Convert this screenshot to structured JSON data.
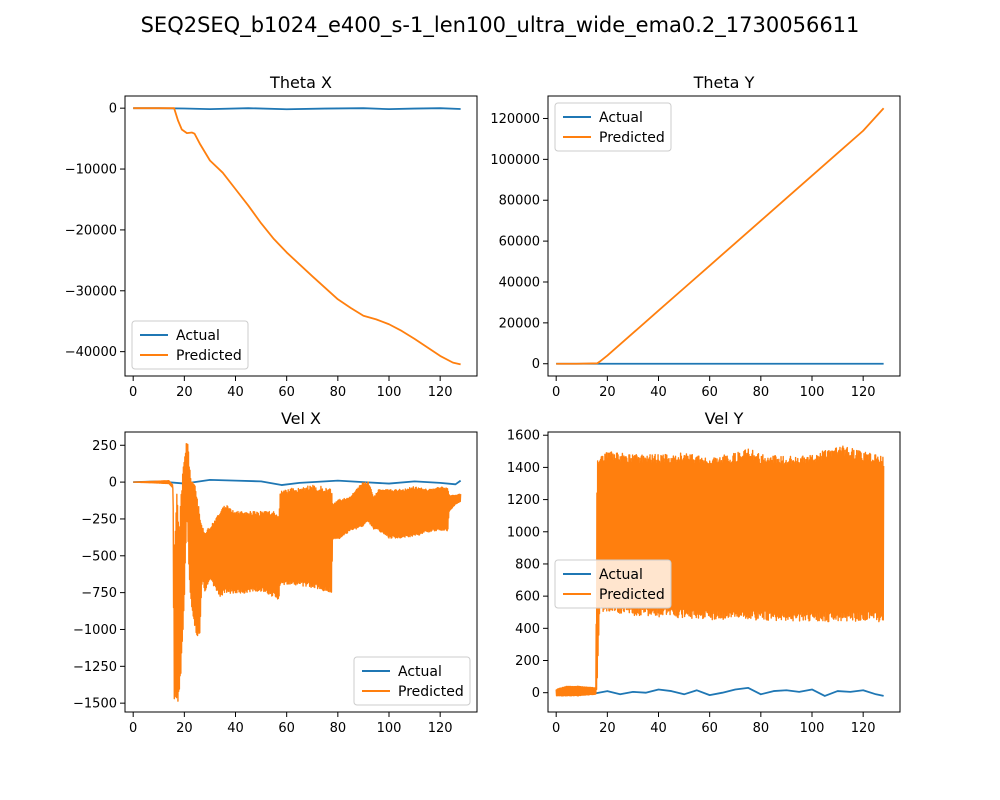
{
  "figure": {
    "suptitle": "SEQ2SEQ_b1024_e400_s-1_len100_ultra_wide_ema0.2_1730056611"
  },
  "colors": {
    "actual": "#1f77b4",
    "predicted": "#ff7f0e",
    "axes": "#000000",
    "background": "#ffffff"
  },
  "chart_data": [
    {
      "id": "theta-x",
      "type": "line",
      "title": "Theta X",
      "xlabel": "",
      "ylabel": "",
      "xlim": [
        -3.2,
        134.4
      ],
      "ylim": [
        -44000,
        2000
      ],
      "xticks": [
        0,
        20,
        40,
        60,
        80,
        100,
        120
      ],
      "yticks": [
        0,
        -10000,
        -20000,
        -30000,
        -40000
      ],
      "ytick_labels": [
        "0",
        "−10000",
        "−20000",
        "−30000",
        "−40000"
      ],
      "grid": false,
      "legend": {
        "position": "lower-left",
        "entries": [
          "Actual",
          "Predicted"
        ]
      },
      "series": [
        {
          "name": "Actual",
          "style": "smooth",
          "x": [
            0,
            10,
            20,
            30,
            45,
            60,
            75,
            90,
            100,
            110,
            120,
            128
          ],
          "y": [
            0,
            0,
            -50,
            -150,
            0,
            -180,
            -60,
            0,
            -160,
            -60,
            0,
            -140
          ]
        },
        {
          "name": "Predicted",
          "style": "smooth",
          "x": [
            0,
            8,
            16,
            17.5,
            19,
            21,
            23,
            24,
            26,
            30,
            35,
            40,
            45,
            50,
            55,
            60,
            70,
            80,
            85,
            90,
            95,
            100,
            105,
            110,
            115,
            120,
            125,
            128
          ],
          "y": [
            0,
            0,
            0,
            -2000,
            -3500,
            -4100,
            -4000,
            -4200,
            -5800,
            -8600,
            -10600,
            -13300,
            -16000,
            -18900,
            -21500,
            -23700,
            -27600,
            -31400,
            -32800,
            -34100,
            -34700,
            -35500,
            -36600,
            -37900,
            -39300,
            -40700,
            -41800,
            -42100
          ]
        }
      ]
    },
    {
      "id": "theta-y",
      "type": "line",
      "title": "Theta Y",
      "xlabel": "",
      "ylabel": "",
      "xlim": [
        -3.2,
        134.4
      ],
      "ylim": [
        -6000,
        131000
      ],
      "xticks": [
        0,
        20,
        40,
        60,
        80,
        100,
        120
      ],
      "yticks": [
        0,
        20000,
        40000,
        60000,
        80000,
        100000,
        120000
      ],
      "ytick_labels": [
        "0",
        "20000",
        "40000",
        "60000",
        "80000",
        "100000",
        "120000"
      ],
      "grid": false,
      "legend": {
        "position": "top-left",
        "entries": [
          "Actual",
          "Predicted"
        ]
      },
      "series": [
        {
          "name": "Actual",
          "style": "smooth",
          "x": [
            0,
            20,
            40,
            60,
            80,
            100,
            128
          ],
          "y": [
            0,
            0,
            0,
            0,
            0,
            0,
            0
          ]
        },
        {
          "name": "Predicted",
          "style": "smooth",
          "x": [
            0,
            8,
            16,
            17,
            20,
            30,
            40,
            50,
            60,
            70,
            80,
            90,
            100,
            110,
            120,
            128
          ],
          "y": [
            0,
            0,
            200,
            1000,
            4000,
            15000,
            26000,
            37000,
            48000,
            59000,
            70000,
            81000,
            92000,
            103000,
            114000,
            125000
          ]
        }
      ]
    },
    {
      "id": "vel-x",
      "type": "line",
      "title": "Vel X",
      "xlabel": "",
      "ylabel": "",
      "xlim": [
        -3.2,
        134.4
      ],
      "ylim": [
        -1560,
        340
      ],
      "xticks": [
        0,
        20,
        40,
        60,
        80,
        100,
        120
      ],
      "yticks": [
        250,
        0,
        -250,
        -500,
        -750,
        -1000,
        -1250,
        -1500
      ],
      "ytick_labels": [
        "250",
        "0",
        "−250",
        "−500",
        "−750",
        "−1000",
        "−1250",
        "−1500"
      ],
      "grid": false,
      "legend": {
        "position": "lower-right",
        "entries": [
          "Actual",
          "Predicted"
        ]
      },
      "series": [
        {
          "name": "Actual",
          "style": "smooth",
          "x": [
            0,
            10,
            20,
            30,
            40,
            50,
            58,
            65,
            80,
            90,
            100,
            110,
            120,
            126,
            128
          ],
          "y": [
            0,
            5,
            -10,
            15,
            10,
            5,
            -20,
            -5,
            10,
            0,
            -10,
            5,
            -5,
            -15,
            10
          ]
        },
        {
          "name": "Predicted",
          "style": "band",
          "x": [
            0,
            8,
            14,
            15.5,
            16,
            17,
            18,
            19,
            20,
            21,
            21.5,
            22,
            23,
            24,
            25,
            26,
            27,
            28,
            29,
            30,
            32,
            34,
            36,
            40,
            45,
            50,
            55,
            57,
            57.5,
            60,
            65,
            70,
            75,
            77.5,
            78,
            80,
            85,
            87,
            90,
            92,
            94,
            96,
            100,
            105,
            110,
            115,
            120,
            123,
            123.5,
            126,
            128
          ],
          "y_upper": [
            0,
            5,
            10,
            -20,
            -500,
            -50,
            -300,
            0,
            200,
            280,
            250,
            100,
            0,
            0,
            -100,
            -200,
            -300,
            -350,
            -320,
            -300,
            -250,
            -200,
            -150,
            -200,
            -200,
            -200,
            -200,
            -220,
            -50,
            -50,
            -30,
            -20,
            -30,
            -40,
            -150,
            -120,
            -100,
            -50,
            0,
            0,
            -100,
            -50,
            -50,
            -50,
            -30,
            -50,
            -30,
            -40,
            -90,
            -90,
            -80
          ],
          "y_lower": [
            0,
            -5,
            -10,
            -40,
            -1480,
            -1500,
            -1480,
            -1200,
            -800,
            -200,
            -450,
            -700,
            -900,
            -980,
            -1050,
            -1040,
            -650,
            -750,
            -700,
            -660,
            -720,
            -780,
            -750,
            -760,
            -750,
            -740,
            -780,
            -800,
            -690,
            -700,
            -700,
            -720,
            -740,
            -760,
            -390,
            -390,
            -330,
            -320,
            -300,
            -270,
            -320,
            -330,
            -380,
            -380,
            -370,
            -340,
            -330,
            -330,
            -200,
            -150,
            -130
          ]
        }
      ]
    },
    {
      "id": "vel-y",
      "type": "line",
      "title": "Vel Y",
      "xlabel": "",
      "ylabel": "",
      "xlim": [
        -3.2,
        134.4
      ],
      "ylim": [
        -120,
        1620
      ],
      "xticks": [
        0,
        20,
        40,
        60,
        80,
        100,
        120
      ],
      "yticks": [
        0,
        200,
        400,
        600,
        800,
        1000,
        1200,
        1400,
        1600
      ],
      "ytick_labels": [
        "0",
        "200",
        "400",
        "600",
        "800",
        "1000",
        "1200",
        "1400",
        "1600"
      ],
      "grid": false,
      "legend": {
        "position": "center-left",
        "entries": [
          "Actual",
          "Predicted"
        ]
      },
      "series": [
        {
          "name": "Actual",
          "style": "smooth",
          "x": [
            0,
            5,
            10,
            15,
            20,
            25,
            30,
            35,
            40,
            45,
            50,
            55,
            60,
            65,
            70,
            75,
            80,
            85,
            90,
            95,
            100,
            105,
            110,
            115,
            120,
            125,
            128
          ],
          "y": [
            0,
            10,
            5,
            -5,
            10,
            -10,
            5,
            0,
            20,
            10,
            -10,
            15,
            -15,
            0,
            20,
            30,
            -10,
            10,
            15,
            5,
            20,
            -20,
            10,
            5,
            15,
            -10,
            -20
          ]
        },
        {
          "name": "Predicted",
          "style": "band",
          "x": [
            0,
            4,
            8,
            15.5,
            16,
            17,
            20,
            30,
            40,
            50,
            60,
            70,
            74,
            80,
            90,
            100,
            110,
            120,
            128
          ],
          "y_upper": [
            20,
            40,
            40,
            30,
            1450,
            1470,
            1500,
            1480,
            1480,
            1490,
            1460,
            1490,
            1530,
            1480,
            1470,
            1480,
            1540,
            1500,
            1470
          ],
          "y_lower": [
            -20,
            -20,
            -20,
            -10,
            30,
            500,
            500,
            480,
            470,
            460,
            450,
            450,
            450,
            450,
            445,
            445,
            440,
            445,
            440
          ]
        }
      ]
    }
  ]
}
